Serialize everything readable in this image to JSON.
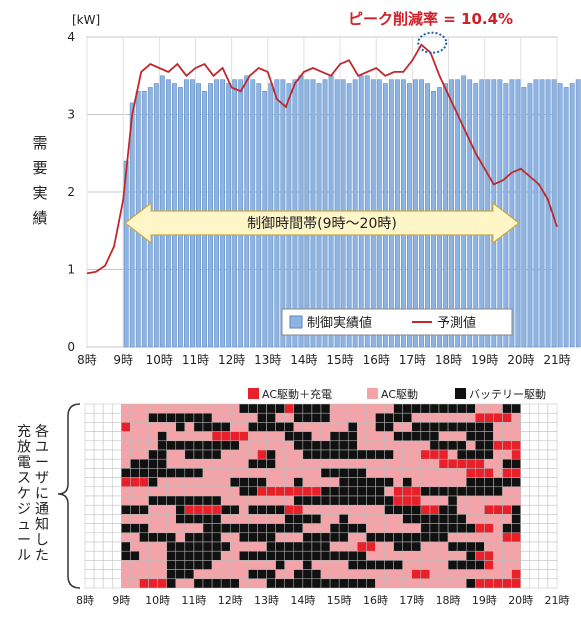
{
  "chart_data": [
    {
      "type": "bar",
      "unit_label": "[kW]",
      "annotation": "ピーク削減率 = 10.4%",
      "ylabel": "需要実績",
      "ylim": [
        0,
        4
      ],
      "yticks": [
        "0",
        "1",
        "2",
        "3",
        "4"
      ],
      "xlim": [
        8,
        21
      ],
      "xticks": [
        "8時",
        "9時",
        "10時",
        "11時",
        "12時",
        "13時",
        "14時",
        "15時",
        "16時",
        "17時",
        "18時",
        "19時",
        "20時",
        "21時"
      ],
      "band_label": "制御時間帯(9時～20時)",
      "band_range": [
        9,
        20
      ],
      "grid": true,
      "legend_position": "bottom-right",
      "peak_marker": {
        "x": 17.55,
        "y": 3.9
      },
      "series": [
        {
          "name": "制御実績値",
          "type": "bar",
          "color": "#8db4e2",
          "x_start": 9,
          "step": 0.1667,
          "values": [
            2.4,
            3.15,
            3.3,
            3.3,
            3.35,
            3.4,
            3.5,
            3.45,
            3.4,
            3.35,
            3.45,
            3.45,
            3.4,
            3.3,
            3.4,
            3.45,
            3.45,
            3.4,
            3.45,
            3.45,
            3.5,
            3.45,
            3.4,
            3.3,
            3.4,
            3.45,
            3.45,
            3.4,
            3.45,
            3.5,
            3.45,
            3.45,
            3.4,
            3.45,
            3.5,
            3.45,
            3.45,
            3.4,
            3.45,
            3.5,
            3.5,
            3.45,
            3.45,
            3.4,
            3.45,
            3.45,
            3.45,
            3.4,
            3.45,
            3.45,
            3.4,
            3.3,
            3.35,
            3.4,
            3.45,
            3.45,
            3.5,
            3.45,
            3.4,
            3.45,
            3.45,
            3.45,
            3.45,
            3.4,
            3.45,
            3.45,
            3.35,
            3.4,
            3.45,
            3.45,
            3.45,
            3.45,
            3.4,
            3.35,
            3.4,
            3.45
          ]
        },
        {
          "name": "予測値",
          "type": "line",
          "color": "#c0282d",
          "x": [
            8,
            8.25,
            8.5,
            8.75,
            9,
            9.25,
            9.5,
            9.75,
            10,
            10.25,
            10.5,
            10.75,
            11,
            11.25,
            11.5,
            11.75,
            12,
            12.25,
            12.5,
            12.75,
            13,
            13.25,
            13.5,
            13.75,
            14,
            14.25,
            14.5,
            14.75,
            15,
            15.25,
            15.5,
            15.75,
            16,
            16.25,
            16.5,
            16.75,
            17,
            17.25,
            17.5,
            17.75,
            18,
            18.25,
            18.5,
            18.75,
            19,
            19.25,
            19.5,
            19.75,
            20,
            20.25,
            20.5,
            20.75,
            21
          ],
          "y": [
            0.95,
            0.97,
            1.05,
            1.3,
            1.9,
            3.0,
            3.55,
            3.65,
            3.6,
            3.55,
            3.65,
            3.5,
            3.6,
            3.65,
            3.5,
            3.6,
            3.35,
            3.3,
            3.5,
            3.6,
            3.55,
            3.2,
            3.1,
            3.4,
            3.55,
            3.6,
            3.55,
            3.5,
            3.65,
            3.7,
            3.5,
            3.55,
            3.6,
            3.5,
            3.55,
            3.55,
            3.7,
            3.9,
            3.8,
            3.5,
            3.25,
            3.0,
            2.75,
            2.5,
            2.3,
            2.1,
            2.15,
            2.25,
            2.3,
            2.2,
            2.1,
            1.9,
            1.55
          ]
        }
      ]
    },
    {
      "type": "heatmap",
      "ylabel": "各ユーザに通知した充放電スケジュール",
      "xlim": [
        8,
        21
      ],
      "xticks": [
        "8時",
        "9時",
        "10時",
        "11時",
        "12時",
        "13時",
        "14時",
        "15時",
        "16時",
        "17時",
        "18時",
        "19時",
        "20時",
        "21時"
      ],
      "legend_position": "top",
      "states": [
        {
          "key": 0,
          "name": "",
          "color": "#ffffff"
        },
        {
          "key": 1,
          "name": "AC駆動＋充電",
          "color": "#e8202a"
        },
        {
          "key": 2,
          "name": "AC駆動",
          "color": "#f4a3a8"
        },
        {
          "key": 3,
          "name": "バッテリー駆動",
          "color": "#111111"
        }
      ],
      "columns": 52,
      "rows": 20,
      "control_columns": [
        4,
        48
      ],
      "pattern_note": "Rows are users; each column is a 15-minute slot; states 2 and 3 alternate in blocks during 9時〜20時 with red (state 1) concentrated near 19時〜20時."
    }
  ]
}
